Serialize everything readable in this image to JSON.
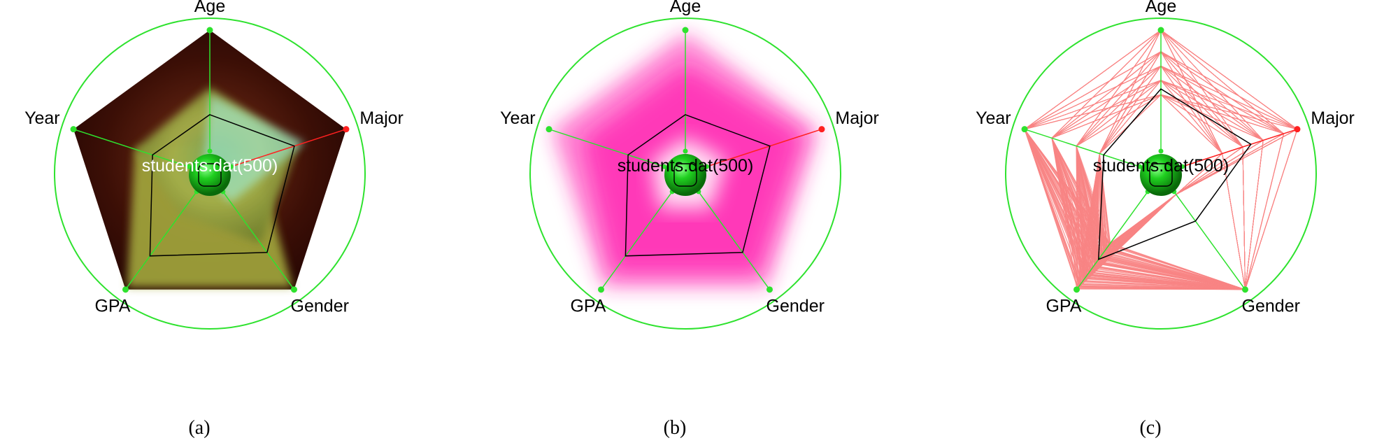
{
  "chart_data": [
    {
      "type": "radar",
      "panel_caption": "(a)",
      "style": "gradient-filled",
      "axes": [
        "Age",
        "Major",
        "Gender",
        "GPA",
        "Year"
      ],
      "dataset_label": "students.dat(500)",
      "mean_profile": [
        0.41,
        0.62,
        0.68,
        0.71,
        0.42
      ],
      "colors": {
        "outer_fill": "#4a1a0c",
        "inner_fill": "#9aa040",
        "highlight": "#9ff5e6",
        "axis": "#2ee22e",
        "selected_axis": "#ff2020"
      }
    },
    {
      "type": "radar",
      "panel_caption": "(b)",
      "style": "density-band",
      "axes": [
        "Age",
        "Major",
        "Gender",
        "GPA",
        "Year"
      ],
      "dataset_label": "students.dat(500)",
      "mean_profile": [
        0.41,
        0.62,
        0.68,
        0.71,
        0.42
      ],
      "colors": {
        "band": "#ff1fae",
        "axis": "#2ee22e",
        "selected_axis": "#ff2020"
      }
    },
    {
      "type": "radar",
      "panel_caption": "(c)",
      "style": "polylines",
      "axes": [
        "Age",
        "Major",
        "Gender",
        "GPA",
        "Year"
      ],
      "dataset_label": "students.dat(500)",
      "record_count": 500,
      "mean_profile": [
        0.59,
        0.66,
        0.41,
        0.74,
        0.42
      ],
      "colors": {
        "lines": "#f88484",
        "axis": "#2ee22e",
        "selected_axis": "#ff2020"
      }
    }
  ]
}
